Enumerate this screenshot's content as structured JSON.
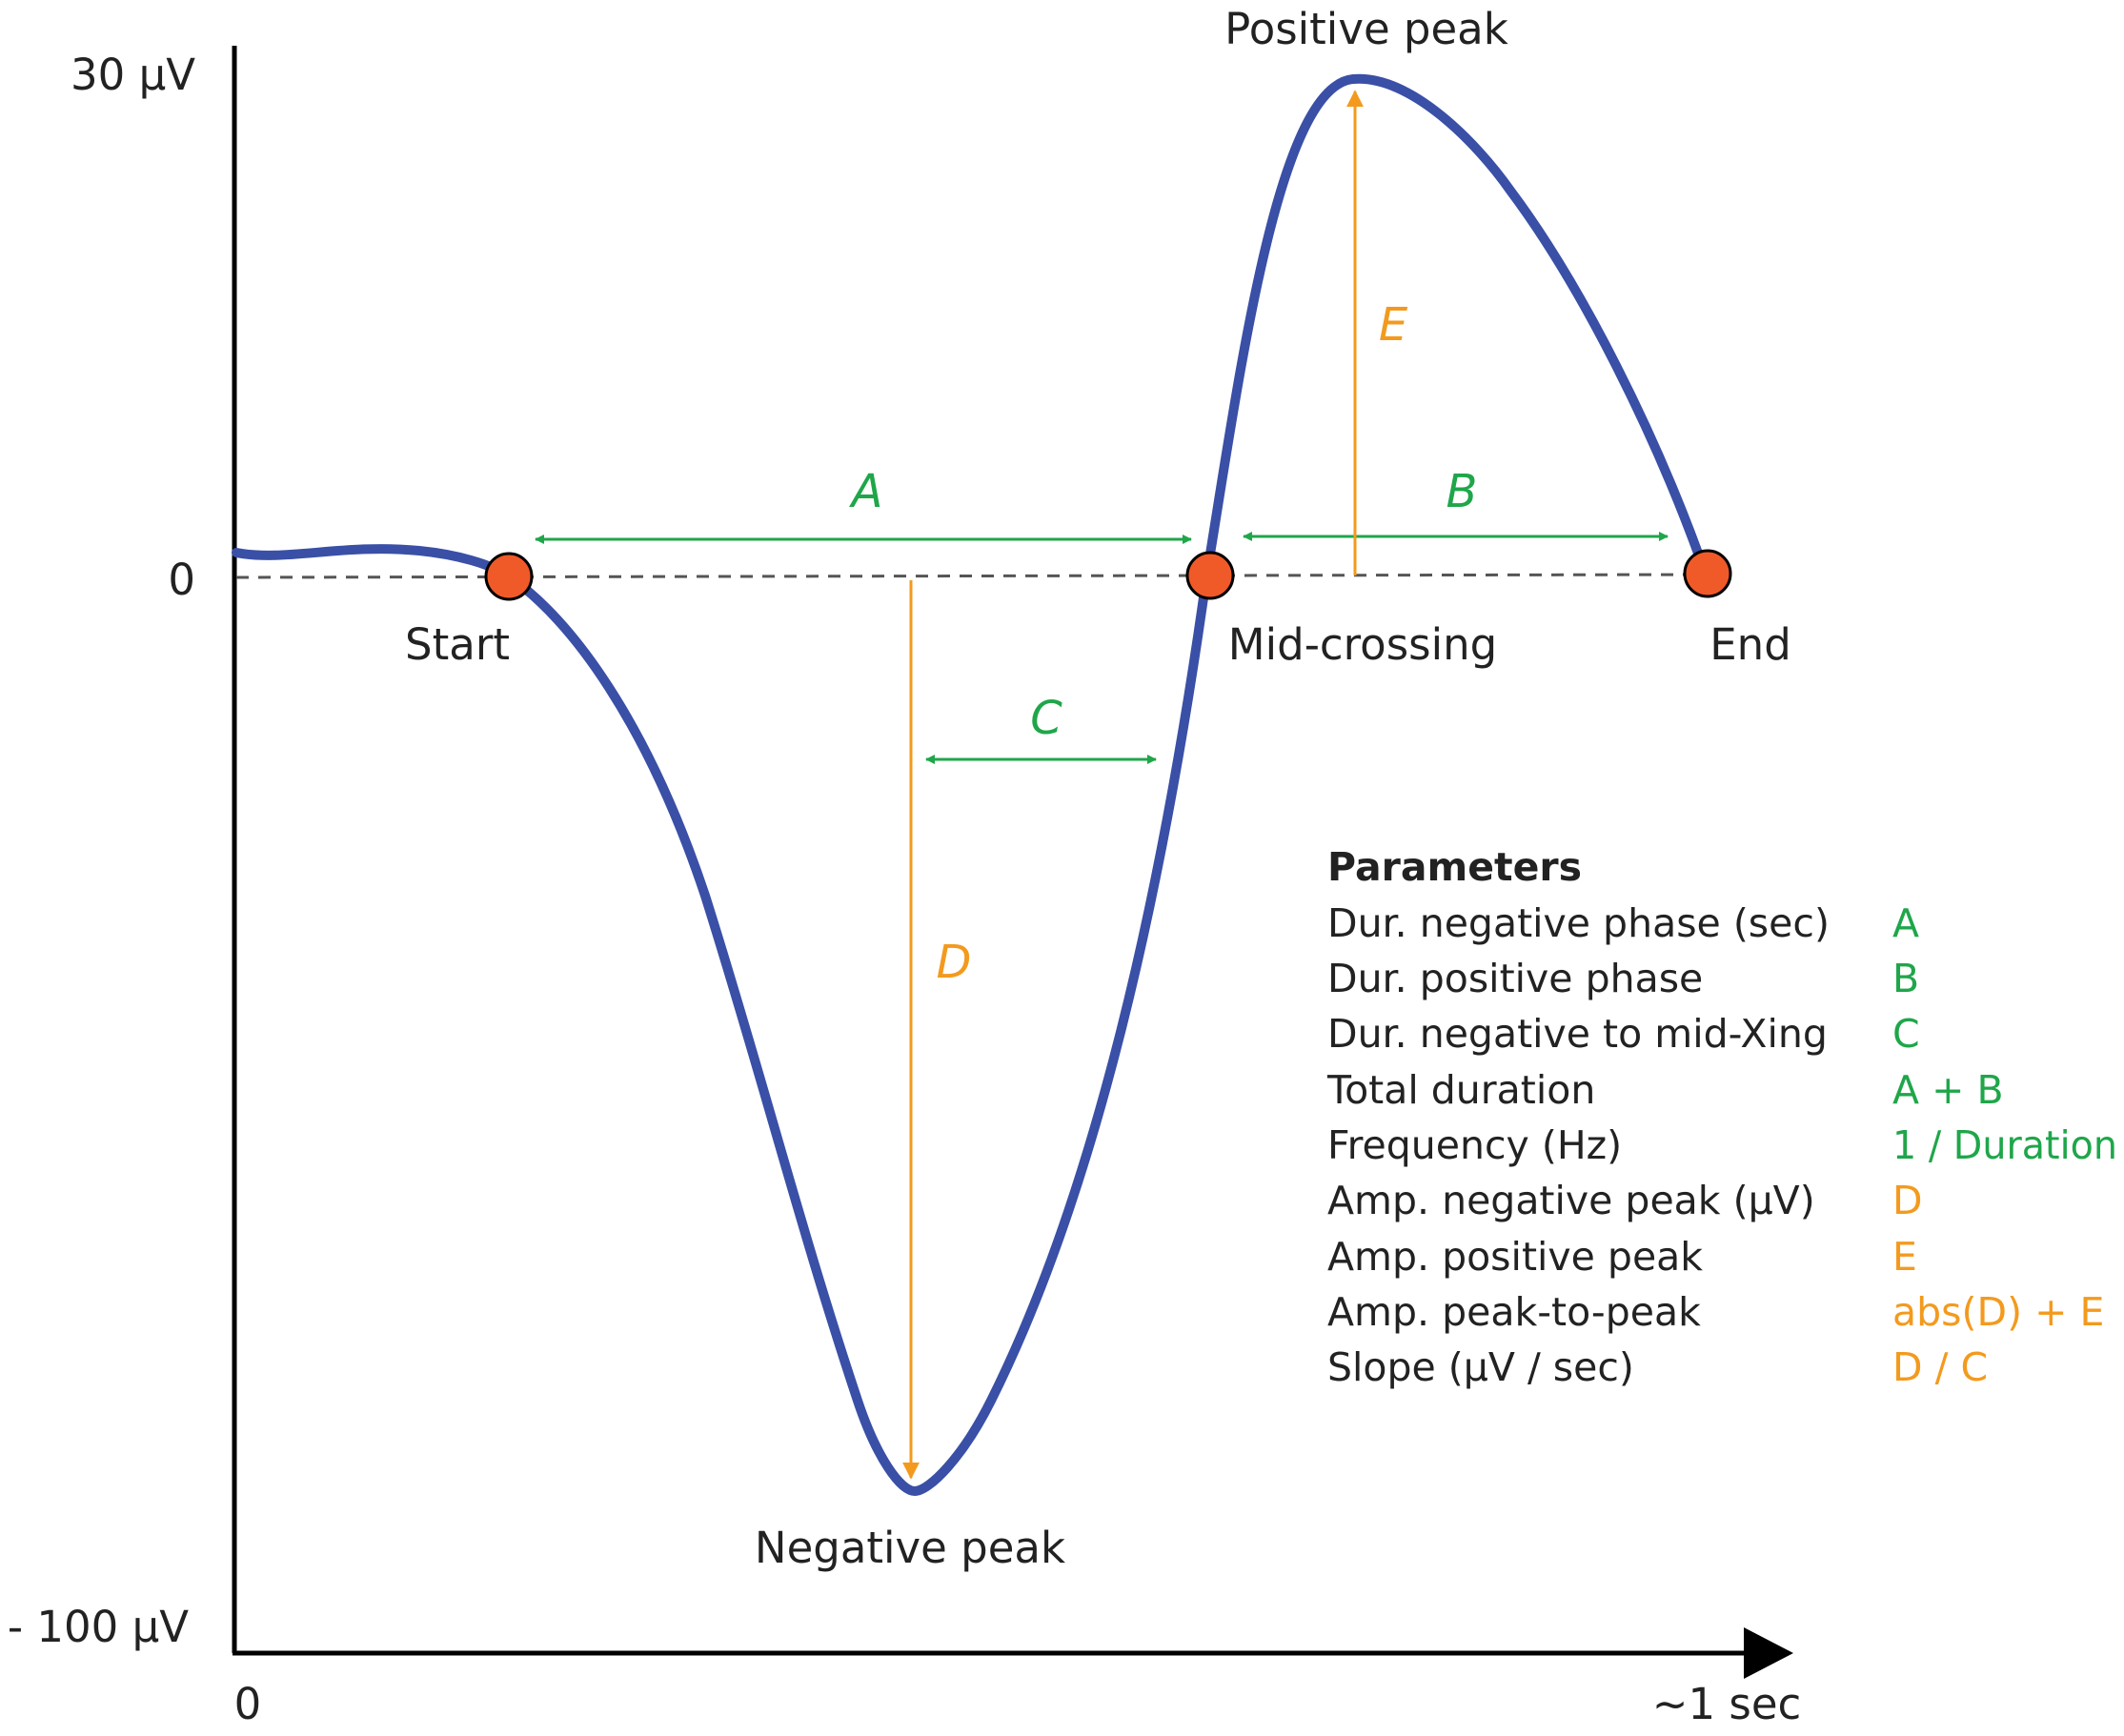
{
  "axes": {
    "y_top": "30 µV",
    "y_zero": "0",
    "y_bottom": "- 100 µV",
    "x_start": "0",
    "x_end": "~1 sec"
  },
  "points": {
    "start": "Start",
    "mid": "Mid-crossing",
    "end": "End",
    "positive_peak": "Positive peak",
    "negative_peak": "Negative peak"
  },
  "measures": {
    "A": "A",
    "B": "B",
    "C": "C",
    "D": "D",
    "E": "E"
  },
  "parameters": {
    "title": "Parameters",
    "rows": [
      {
        "name": "Dur. negative phase (sec)",
        "value": "A"
      },
      {
        "name": "Dur. positive phase",
        "value": "B"
      },
      {
        "name": "Dur. negative to mid-Xing",
        "value": "C"
      },
      {
        "name": "Total duration",
        "value": "A + B"
      },
      {
        "name": "Frequency (Hz)",
        "value": "1 / Duration"
      },
      {
        "name": "Amp. negative peak (µV)",
        "value": "D"
      },
      {
        "name": "Amp. positive peak",
        "value": "E"
      },
      {
        "name": "Amp. peak-to-peak",
        "value": "abs(D) + E"
      },
      {
        "name": "Slope (µV / sec)",
        "value": "D / C"
      }
    ]
  },
  "colors": {
    "waveform": "#3a4fa6",
    "marker": "#f05a28",
    "duration": "#1fa64a",
    "amplitude": "#f39a1e",
    "axis": "#000000"
  }
}
